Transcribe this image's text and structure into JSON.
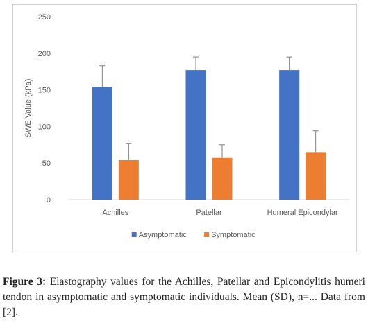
{
  "chart_data": {
    "type": "bar",
    "title": "",
    "xlabel": "",
    "ylabel": "SWE Value (kPa)",
    "ylim": [
      0,
      250
    ],
    "yticks": [
      0,
      50,
      100,
      150,
      200,
      250
    ],
    "categories": [
      "Achilles",
      "Patellar",
      "Humeral Epicondylar"
    ],
    "series": [
      {
        "name": "Asymptomatic",
        "color": "#4472C4",
        "values": [
          154,
          177,
          177
        ],
        "errors": [
          29,
          18,
          18
        ]
      },
      {
        "name": "Symptomatic",
        "color": "#ED7D31",
        "values": [
          54,
          57,
          65
        ],
        "errors": [
          23,
          18,
          29
        ]
      }
    ],
    "grid": false,
    "legend": "bottom",
    "error_bars": true
  },
  "caption": {
    "label": "Figure 3:",
    "text": " Elastography values for the Achilles, Patellar and Epicondylitis humeri tendon in asymptomatic and symptomatic individuals. Mean (SD), n=... Data from [2]."
  }
}
